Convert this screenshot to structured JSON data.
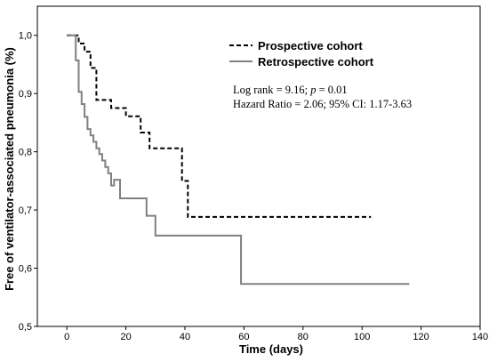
{
  "chart_data": {
    "type": "line",
    "xlabel": "Time (days)",
    "ylabel": "Free of ventilator-associated pneumonia (%)",
    "xlim": [
      -10,
      140
    ],
    "ylim": [
      0.5,
      1.05
    ],
    "x_ticks": [
      "0",
      "20",
      "40",
      "60",
      "80",
      "100",
      "120",
      "140"
    ],
    "y_ticks": [
      "0,5",
      "0,6",
      "0,7",
      "0,8",
      "0,9",
      "1,0"
    ],
    "grid": false,
    "legend_position": "top-right",
    "series": [
      {
        "name": "Prospective cohort",
        "style": "dashed",
        "color": "#000000",
        "x": [
          0,
          4,
          6,
          8,
          10,
          15,
          20,
          25,
          28,
          39,
          41,
          103
        ],
        "y": [
          1.0,
          0.986,
          0.972,
          0.944,
          0.889,
          0.875,
          0.861,
          0.833,
          0.806,
          0.75,
          0.688,
          0.688
        ]
      },
      {
        "name": "Retrospective cohort",
        "style": "solid",
        "color": "#808080",
        "x": [
          0,
          3,
          4,
          5,
          6,
          7,
          8,
          9,
          10,
          11,
          12,
          13,
          14,
          15,
          16,
          18,
          21,
          27,
          30,
          59,
          116
        ],
        "y": [
          1.0,
          0.957,
          0.903,
          0.882,
          0.86,
          0.839,
          0.828,
          0.817,
          0.806,
          0.796,
          0.785,
          0.774,
          0.763,
          0.742,
          0.752,
          0.72,
          0.72,
          0.69,
          0.656,
          0.573,
          0.573
        ]
      }
    ],
    "annotations": {
      "log_rank_prefix": "Log rank = 9.16; ",
      "p_symbol": "p",
      "p_value": " = 0.01",
      "hazard_ratio": "Hazard Ratio = 2.06; 95% CI: 1.17-3.63"
    }
  }
}
